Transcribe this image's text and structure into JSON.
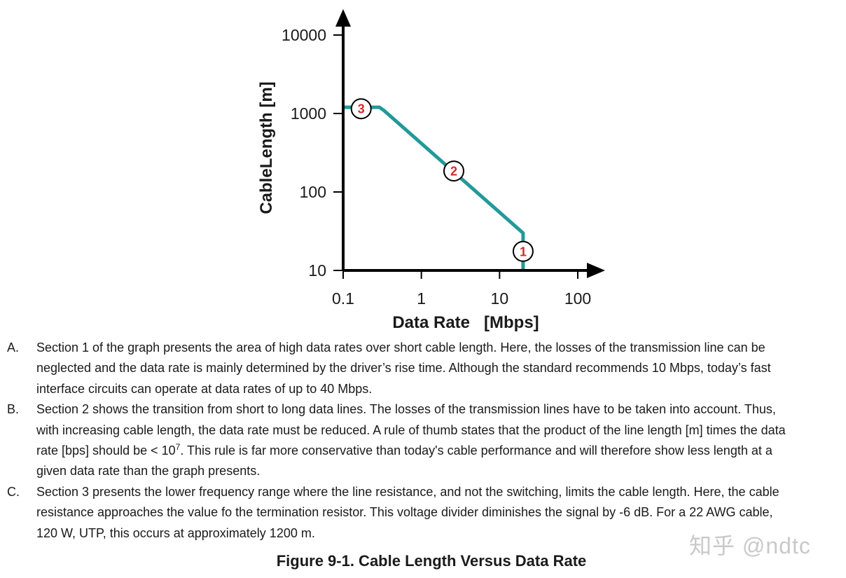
{
  "chart_data": {
    "type": "line",
    "xlabel": "Data Rate   [Mbps]",
    "ylabel": "CableLength [m]",
    "xscale": "log",
    "yscale": "log",
    "xlim": [
      0.1,
      100
    ],
    "ylim": [
      10,
      10000
    ],
    "x_ticks": [
      "0.1",
      "1",
      "10",
      "100"
    ],
    "y_ticks": [
      "10",
      "100",
      "1000",
      "10000"
    ],
    "series": [
      {
        "color": "#22999a",
        "x": [
          0.1,
          0.29,
          0.33,
          20,
          20
        ],
        "y": [
          1200,
          1200,
          1100,
          30,
          10
        ]
      }
    ],
    "markers": [
      {
        "label": "3",
        "x": 0.17,
        "y": 1150
      },
      {
        "label": "2",
        "x": 2.6,
        "y": 185
      },
      {
        "label": "1",
        "x": 20,
        "y": 17.5
      }
    ],
    "colors": {
      "line": "#22999a",
      "marker_text": "#d22a2a",
      "axis": "#000000"
    }
  },
  "notes": [
    {
      "letter": "A.",
      "text": "Section 1 of the graph presents the area of high data rates over short cable length. Here, the losses of the transmission line can be\nneglected and the data rate is mainly determined by the driver’s rise time. Although the standard recommends 10 Mbps, today’s fast\ninterface circuits can operate at data rates of up to 40 Mbps."
    },
    {
      "letter": "B.",
      "text_before": "Section 2 shows the transition from short to long data lines. The losses of the transmission lines have to be taken into account. Thus,\nwith increasing cable length, the data rate must be reduced. A rule of thumb states that the product of the line length [m] times the data\nrate [bps] should be < 10",
      "sup": "7",
      "text_after": ". This rule is far more conservative than today's cable performance and will therefore show less length at a\ngiven data rate than the graph presents."
    },
    {
      "letter": "C.",
      "text": "Section 3 presents the lower frequency range where the line resistance, and not the switching, limits the cable length. Here, the cable\nresistance approaches the value fo the termination resistor. This voltage divider diminishes the signal by -6 dB. For a 22 AWG cable,\n120 W, UTP, this occurs at approximately 1200 m."
    }
  ],
  "caption": "Figure 9-1. Cable Length Versus Data Rate",
  "watermark": "知乎 @ndtc"
}
